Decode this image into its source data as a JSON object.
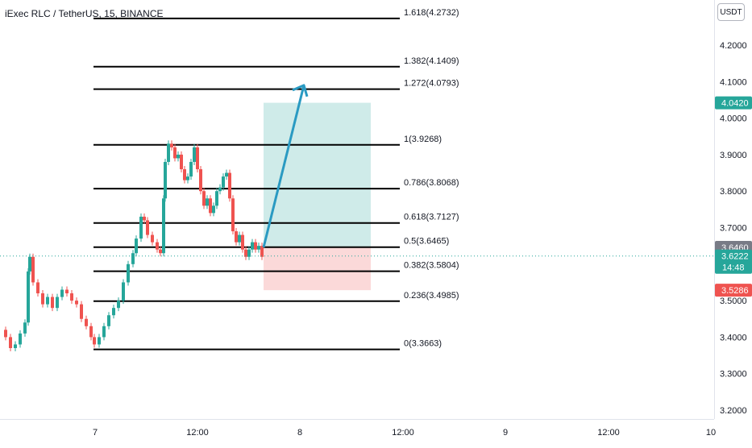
{
  "header": {
    "title": "iExec RLC / TetherUS, 15, BINANCE",
    "currency": "USDT"
  },
  "chart_data": {
    "type": "candlestick",
    "symbol": "iExec RLC / TetherUS",
    "interval": "15",
    "exchange": "BINANCE",
    "y_axis": {
      "range": [
        3.2,
        4.3
      ],
      "ticks": [
        "4.2000",
        "4.1000",
        "4.0000",
        "3.9000",
        "3.8000",
        "3.7000",
        "3.6000",
        "3.5000",
        "3.4000",
        "3.3000",
        "3.2000"
      ]
    },
    "x_axis": {
      "ticks": [
        "7",
        "12:00",
        "8",
        "12:00",
        "9",
        "12:00",
        "10"
      ]
    },
    "fib_levels": [
      {
        "label": "1.618(4.2732)",
        "value": 4.2732
      },
      {
        "label": "1.382(4.1409)",
        "value": 4.1409
      },
      {
        "label": "1.272(4.0793)",
        "value": 4.0793
      },
      {
        "label": "1(3.9268)",
        "value": 3.9268
      },
      {
        "label": "0.786(3.8068)",
        "value": 3.8068
      },
      {
        "label": "0.618(3.7127)",
        "value": 3.7127
      },
      {
        "label": "0.5(3.6465)",
        "value": 3.6465
      },
      {
        "label": "0.382(3.5804)",
        "value": 3.5804
      },
      {
        "label": "0.236(3.4985)",
        "value": 3.4985
      },
      {
        "label": "0(3.3663)",
        "value": 3.3663
      }
    ],
    "position": {
      "entry": 3.646,
      "target": 4.042,
      "stop": 3.5286
    },
    "price_tags": [
      {
        "label": "4.0420",
        "value": 4.042,
        "color": "#26a69a"
      },
      {
        "label": "3.6460",
        "value": 3.646,
        "color": "#787b86"
      },
      {
        "label": "3.6222",
        "value": 3.6222,
        "color": "#26a69a",
        "sub": "14:48"
      },
      {
        "label": "3.5286",
        "value": 3.5286,
        "color": "#ef5350"
      }
    ],
    "current_price": 3.6222,
    "countdown": "14:48",
    "candles_path": [
      [
        0,
        3.42
      ],
      [
        8,
        3.4
      ],
      [
        14,
        3.37
      ],
      [
        20,
        3.38
      ],
      [
        26,
        3.41
      ],
      [
        32,
        3.44
      ],
      [
        36,
        3.58
      ],
      [
        38,
        3.62
      ],
      [
        42,
        3.55
      ],
      [
        48,
        3.52
      ],
      [
        54,
        3.49
      ],
      [
        60,
        3.51
      ],
      [
        66,
        3.48
      ],
      [
        72,
        3.51
      ],
      [
        78,
        3.53
      ],
      [
        84,
        3.52
      ],
      [
        90,
        3.5
      ],
      [
        96,
        3.49
      ],
      [
        102,
        3.45
      ],
      [
        108,
        3.43
      ],
      [
        114,
        3.4
      ],
      [
        118,
        3.38
      ],
      [
        124,
        3.4
      ],
      [
        130,
        3.43
      ],
      [
        136,
        3.46
      ],
      [
        142,
        3.48
      ],
      [
        148,
        3.5
      ],
      [
        154,
        3.55
      ],
      [
        160,
        3.6
      ],
      [
        166,
        3.63
      ],
      [
        170,
        3.67
      ],
      [
        176,
        3.73
      ],
      [
        180,
        3.72
      ],
      [
        184,
        3.68
      ],
      [
        190,
        3.66
      ],
      [
        196,
        3.64
      ],
      [
        200,
        3.63
      ],
      [
        204,
        3.78
      ],
      [
        206,
        3.88
      ],
      [
        210,
        3.93
      ],
      [
        214,
        3.92
      ],
      [
        218,
        3.89
      ],
      [
        222,
        3.9
      ],
      [
        226,
        3.86
      ],
      [
        230,
        3.83
      ],
      [
        234,
        3.84
      ],
      [
        238,
        3.88
      ],
      [
        242,
        3.92
      ],
      [
        246,
        3.86
      ],
      [
        250,
        3.8
      ],
      [
        254,
        3.76
      ],
      [
        258,
        3.78
      ],
      [
        262,
        3.74
      ],
      [
        266,
        3.76
      ],
      [
        270,
        3.8
      ],
      [
        274,
        3.81
      ],
      [
        278,
        3.84
      ],
      [
        282,
        3.85
      ],
      [
        286,
        3.78
      ],
      [
        290,
        3.69
      ],
      [
        294,
        3.66
      ],
      [
        298,
        3.68
      ],
      [
        302,
        3.64
      ],
      [
        306,
        3.62
      ],
      [
        310,
        3.64
      ],
      [
        314,
        3.66
      ],
      [
        318,
        3.64
      ],
      [
        322,
        3.65
      ],
      [
        326,
        3.62
      ]
    ]
  }
}
